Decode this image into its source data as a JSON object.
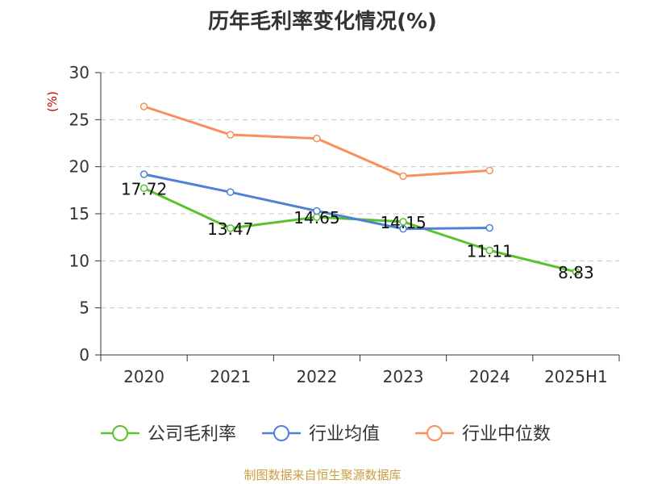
{
  "chart_data": {
    "type": "line",
    "title": "历年毛利率变化情况(%)",
    "ylabel": "(%)",
    "xlabel": "",
    "categories": [
      "2020",
      "2021",
      "2022",
      "2023",
      "2024",
      "2025H1"
    ],
    "ylim": [
      0,
      30
    ],
    "yticks": [
      0,
      5,
      10,
      15,
      20,
      25,
      30
    ],
    "grid": true,
    "legend_position": "bottom",
    "series": [
      {
        "name": "公司毛利率",
        "color": "#5ac22e",
        "values": [
          17.72,
          13.47,
          14.65,
          14.15,
          11.11,
          8.83
        ],
        "labels": [
          "17.72",
          "13.47",
          "14.65",
          "14.15",
          "11.11",
          "8.83"
        ]
      },
      {
        "name": "行业均值",
        "color": "#4f81d8",
        "values": [
          19.2,
          17.3,
          15.3,
          13.4,
          13.5,
          null
        ]
      },
      {
        "name": "行业中位数",
        "color": "#f7905a",
        "values": [
          26.4,
          23.4,
          23.0,
          19.0,
          19.6,
          null
        ]
      }
    ],
    "ylabel_color": "#cc0000",
    "source": "制图数据来自恒生聚源数据库"
  }
}
